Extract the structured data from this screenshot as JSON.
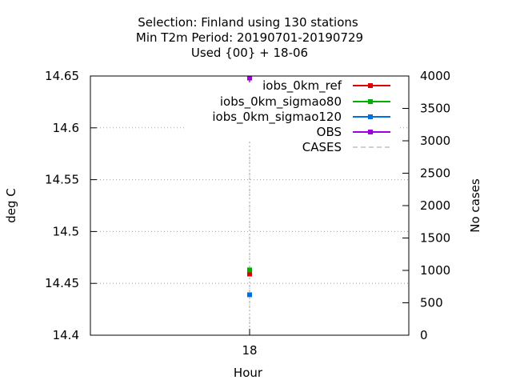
{
  "chart_data": {
    "type": "scatter",
    "title_lines": [
      "Selection: Finland using   130 stations",
      "Min T2m   Period: 20190701-20190729",
      "Used {00} + 18-06"
    ],
    "xlabel": "Hour",
    "ylabel": "deg C",
    "y2label": "No cases",
    "categories": [
      "18"
    ],
    "ylim": [
      14.4,
      14.65
    ],
    "yticks": [
      "14.4",
      "14.45",
      "14.5",
      "14.55",
      "14.6",
      "14.65"
    ],
    "y2lim": [
      0,
      4000
    ],
    "y2ticks": [
      "0",
      "500",
      "1000",
      "1500",
      "2000",
      "2500",
      "3000",
      "3500",
      "4000"
    ],
    "grid": true,
    "legend_position": "top-right",
    "series": [
      {
        "name": "iobs_0km_ref",
        "color": "#e00000",
        "axis": "y",
        "values": [
          14.459
        ]
      },
      {
        "name": "iobs_0km_sigmao80",
        "color": "#00b000",
        "axis": "y",
        "values": [
          14.463
        ]
      },
      {
        "name": "iobs_0km_sigmao120",
        "color": "#0070e0",
        "axis": "y",
        "values": [
          14.439
        ]
      },
      {
        "name": "OBS",
        "color": "#a000e0",
        "axis": "y",
        "values": [
          14.648
        ]
      },
      {
        "name": "CASES",
        "color": "#a0a0a0",
        "axis": "y2",
        "dashed": true,
        "values": [
          3000
        ]
      }
    ]
  }
}
